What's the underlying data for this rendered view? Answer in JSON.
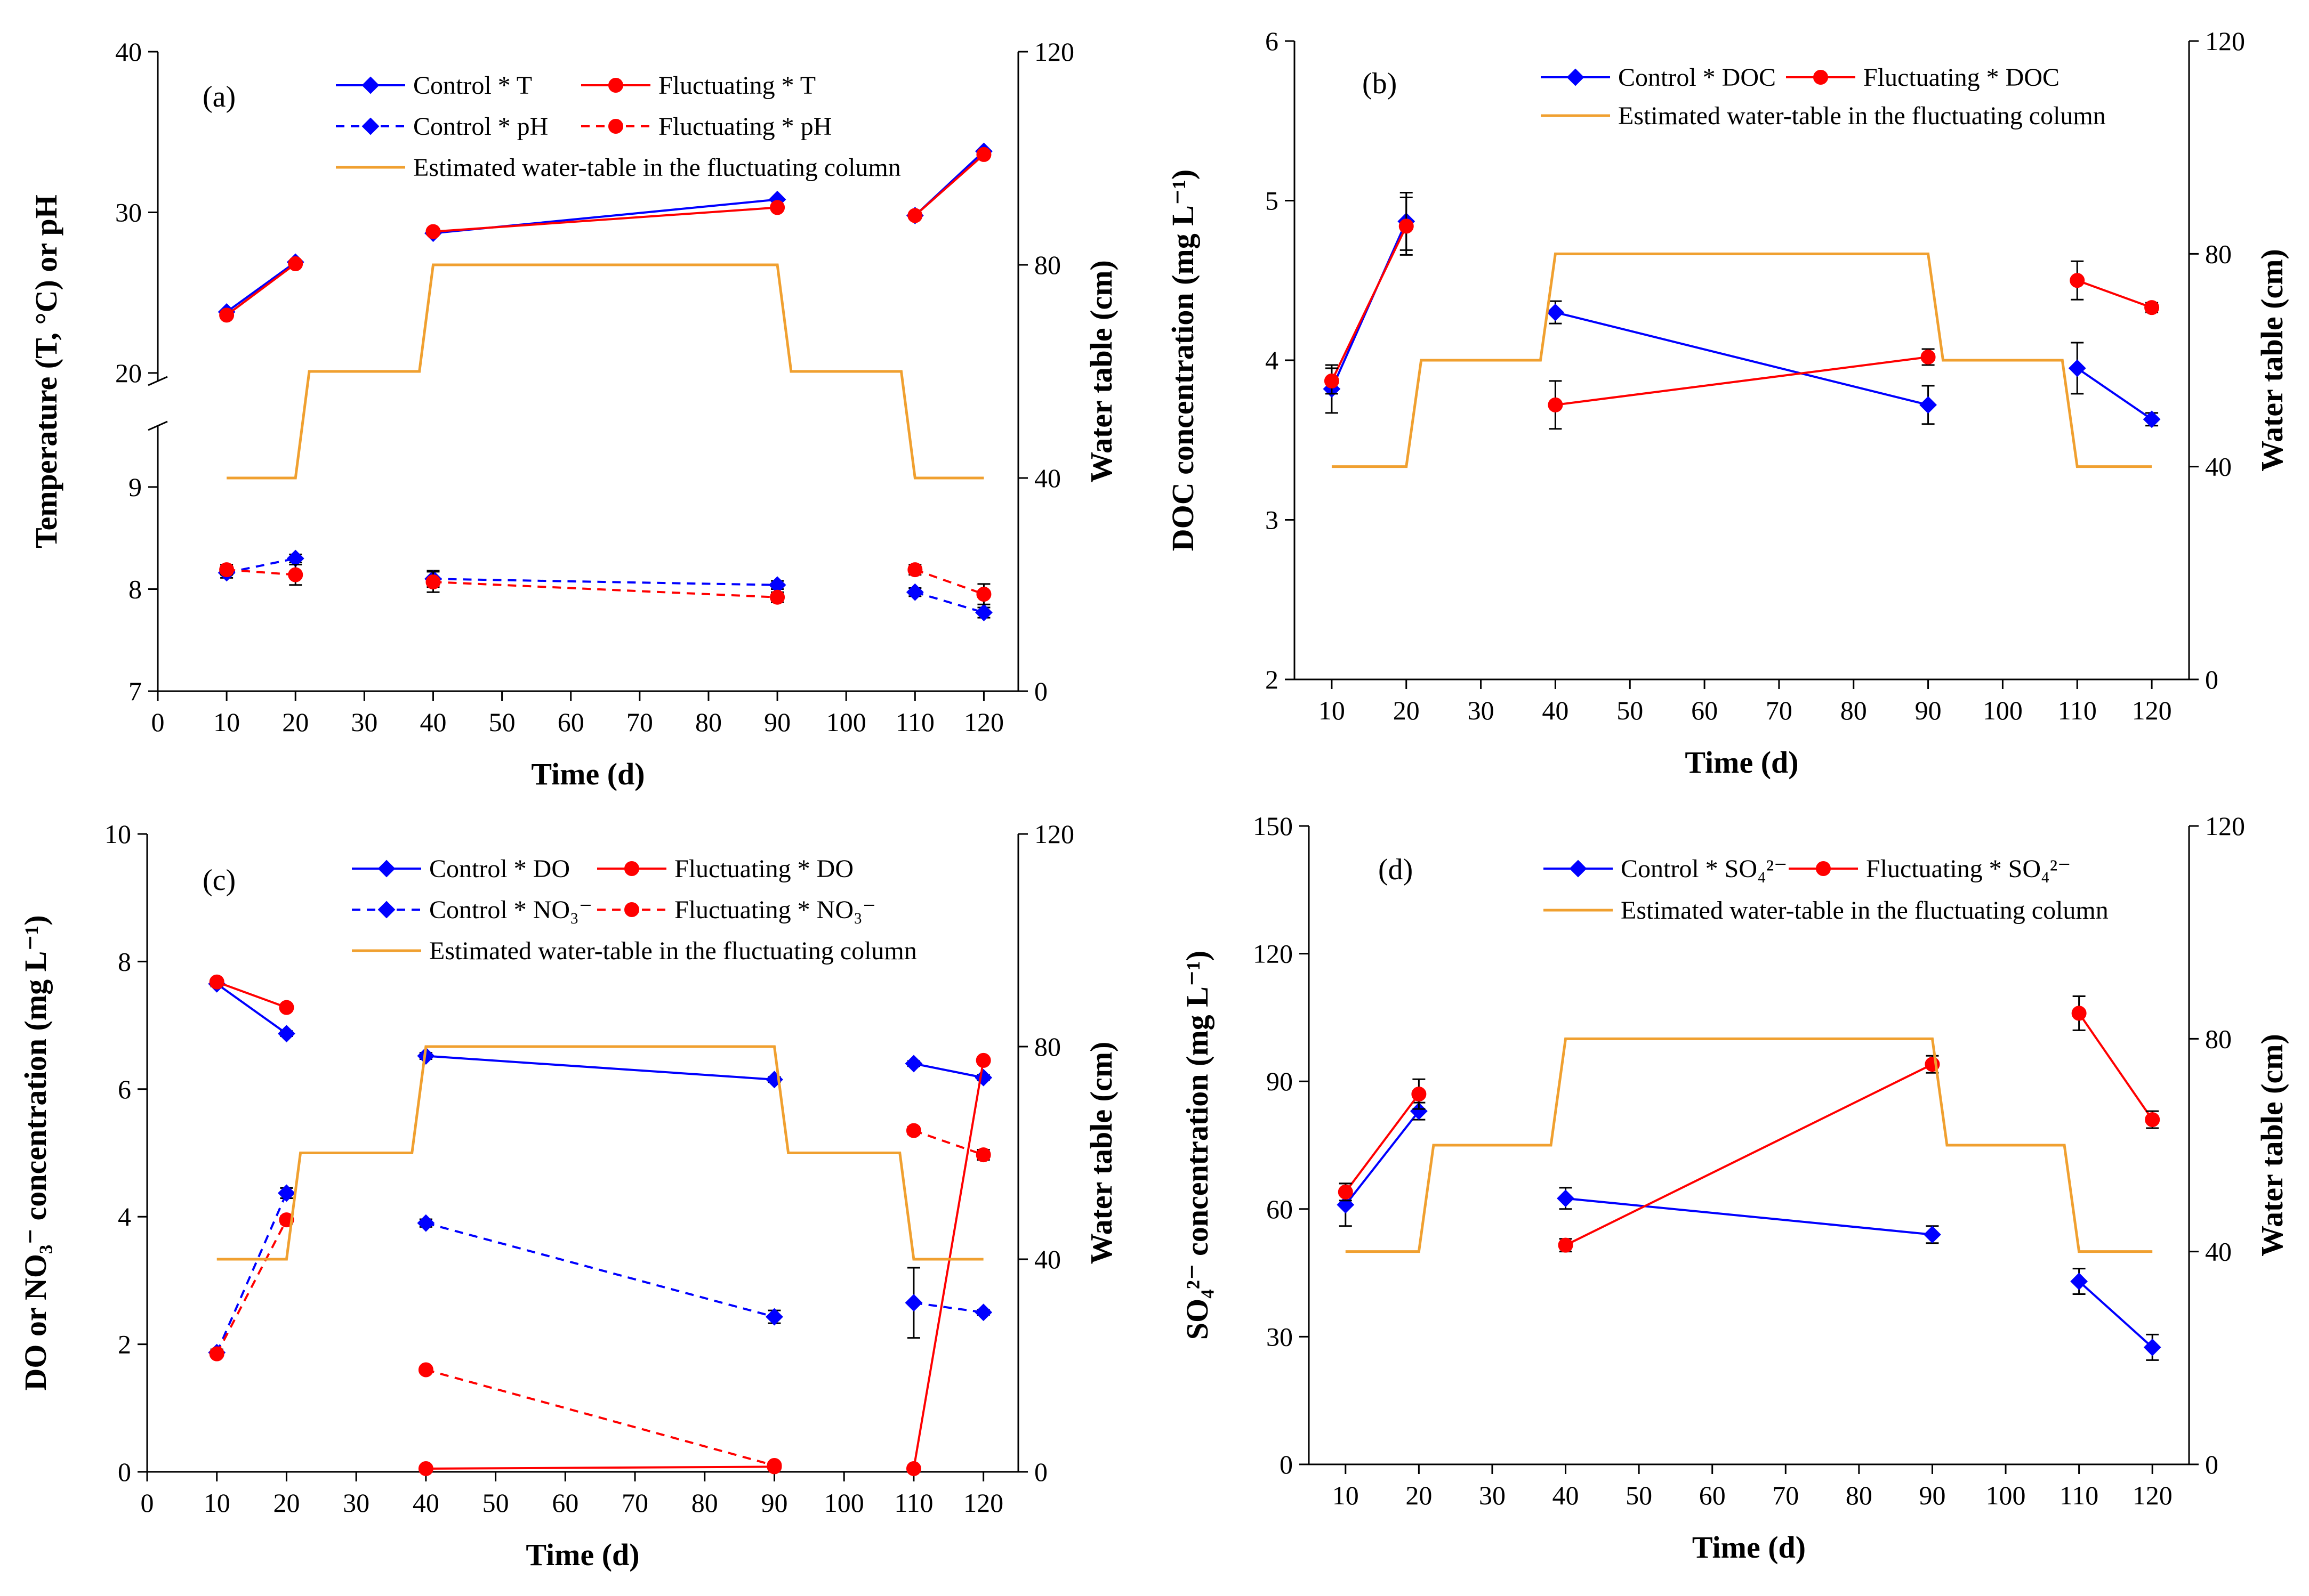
{
  "figure": {
    "panels": [
      {
        "id": "a",
        "label": "(a)",
        "xlabel": "Time (d)",
        "ylabel": "Temperature (T, °C) or pH",
        "y2label": "Water table (cm)",
        "legend": [
          {
            "label": "Control * T",
            "color": "#0000ff",
            "marker": "diamond",
            "dash": false
          },
          {
            "label": "Fluctuating * T",
            "color": "#ff0000",
            "marker": "circle",
            "dash": false
          },
          {
            "label": "Control * pH",
            "color": "#0000ff",
            "marker": "diamond",
            "dash": true
          },
          {
            "label": "Fluctuating * pH",
            "color": "#ff0000",
            "marker": "circle",
            "dash": true
          },
          {
            "label": "Estimated water-table in the fluctuating column",
            "color": "#f0a030",
            "marker": "none",
            "dash": false
          }
        ]
      },
      {
        "id": "b",
        "label": "(b)",
        "xlabel": "Time (d)",
        "ylabel": "DOC concentration (mg L⁻¹)",
        "y2label": "Water table (cm)",
        "legend": [
          {
            "label": "Control * DOC",
            "color": "#0000ff",
            "marker": "diamond",
            "dash": false
          },
          {
            "label": "Fluctuating * DOC",
            "color": "#ff0000",
            "marker": "circle",
            "dash": false
          },
          {
            "label": "Estimated water-table in the fluctuating column",
            "color": "#f0a030",
            "marker": "none",
            "dash": false
          }
        ]
      },
      {
        "id": "c",
        "label": "(c)",
        "xlabel": "Time (d)",
        "ylabel": "DO or NO₃⁻ concentration (mg L⁻¹)",
        "y2label": "Water table (cm)",
        "legend": [
          {
            "label": "Control * DO",
            "color": "#0000ff",
            "marker": "diamond",
            "dash": false
          },
          {
            "label": "Fluctuating * DO",
            "color": "#ff0000",
            "marker": "circle",
            "dash": false
          },
          {
            "label": "Control * NO₃⁻",
            "color": "#0000ff",
            "marker": "diamond",
            "dash": true
          },
          {
            "label": "Fluctuating * NO₃⁻",
            "color": "#ff0000",
            "marker": "circle",
            "dash": true
          },
          {
            "label": "Estimated water-table in the fluctuating column",
            "color": "#f0a030",
            "marker": "none",
            "dash": false
          }
        ]
      },
      {
        "id": "d",
        "label": "(d)",
        "xlabel": "Time (d)",
        "ylabel": "SO₄²⁻ concentration (mg L⁻¹)",
        "y2label": "Water table (cm)",
        "legend": [
          {
            "label": "Control * SO₄²⁻",
            "color": "#0000ff",
            "marker": "diamond",
            "dash": false
          },
          {
            "label": "Fluctuating * SO₄²⁻",
            "color": "#ff0000",
            "marker": "circle",
            "dash": false
          },
          {
            "label": "Estimated water-table in the fluctuating column",
            "color": "#f0a030",
            "marker": "none",
            "dash": false
          }
        ]
      }
    ]
  },
  "chart_data": [
    {
      "type": "line",
      "panel": "a",
      "title": "",
      "xlabel": "Time (d)",
      "ylabel": "Temperature (T, °C) or pH",
      "y2label": "Water table (cm)",
      "xlim": [
        0,
        125
      ],
      "xticks": [
        "0",
        "10",
        "20",
        "30",
        "40",
        "50",
        "60",
        "70",
        "80",
        "90",
        "100",
        "110",
        "120"
      ],
      "ylim": [
        7,
        40
      ],
      "y_axis_break": {
        "lower": [
          7,
          9.6
        ],
        "upper": [
          19.5,
          40
        ]
      },
      "yticks": [
        "7",
        "8",
        "9",
        "20",
        "30",
        "40"
      ],
      "y2lim": [
        0,
        120
      ],
      "y2ticks": [
        "0",
        "40",
        "80",
        "120"
      ],
      "series": [
        {
          "name": "Control * T",
          "axis": "left",
          "segments": [
            [
              [
                10,
                23.8
              ],
              [
                20,
                26.9
              ]
            ],
            [
              [
                40,
                28.7
              ],
              [
                90,
                30.8
              ]
            ],
            [
              [
                110,
                29.8
              ],
              [
                120,
                33.8
              ]
            ]
          ],
          "errors": [
            0,
            0,
            0,
            0,
            0,
            0
          ]
        },
        {
          "name": "Fluctuating * T",
          "axis": "left",
          "segments": [
            [
              [
                10,
                23.6
              ],
              [
                20,
                26.8
              ]
            ],
            [
              [
                40,
                28.8
              ],
              [
                90,
                30.3
              ]
            ],
            [
              [
                110,
                29.8
              ],
              [
                120,
                33.6
              ]
            ]
          ],
          "errors": [
            0,
            0,
            0,
            0,
            0,
            0
          ]
        },
        {
          "name": "Control * pH",
          "axis": "left",
          "segments": [
            [
              [
                10,
                8.16
              ],
              [
                20,
                8.3
              ]
            ],
            [
              [
                40,
                8.1
              ],
              [
                90,
                8.04
              ]
            ],
            [
              [
                110,
                7.97
              ],
              [
                120,
                7.77
              ]
            ]
          ],
          "errors": [
            0.05,
            0.04,
            0.08,
            0.04,
            0.04,
            0.05
          ]
        },
        {
          "name": "Fluctuating * pH",
          "axis": "left",
          "segments": [
            [
              [
                10,
                8.19
              ],
              [
                20,
                8.14
              ]
            ],
            [
              [
                40,
                8.07
              ],
              [
                90,
                7.92
              ]
            ],
            [
              [
                110,
                8.19
              ],
              [
                120,
                7.95
              ]
            ]
          ],
          "errors": [
            0.05,
            0.1,
            0.1,
            0.05,
            0.05,
            0.1
          ]
        },
        {
          "name": "Estimated water-table in the fluctuating column",
          "axis": "right",
          "x": [
            10,
            20,
            22,
            38,
            40,
            90,
            92,
            108,
            110,
            120
          ],
          "values": [
            40,
            40,
            60,
            60,
            80,
            80,
            60,
            60,
            40,
            40
          ]
        }
      ]
    },
    {
      "type": "line",
      "panel": "b",
      "title": "",
      "xlabel": "Time (d)",
      "ylabel": "DOC concentration (mg L⁻¹)",
      "y2label": "Water table (cm)",
      "xlim": [
        5,
        125
      ],
      "xticks": [
        "10",
        "20",
        "30",
        "40",
        "50",
        "60",
        "70",
        "80",
        "90",
        "100",
        "110",
        "120"
      ],
      "ylim": [
        2,
        6
      ],
      "yticks": [
        "2",
        "3",
        "4",
        "5",
        "6"
      ],
      "y2lim": [
        0,
        120
      ],
      "y2ticks": [
        "0",
        "40",
        "80",
        "120"
      ],
      "series": [
        {
          "name": "Control * DOC",
          "axis": "left",
          "segments": [
            [
              [
                10,
                3.82
              ],
              [
                20,
                4.87
              ]
            ],
            [
              [
                40,
                4.3
              ],
              [
                90,
                3.72
              ]
            ],
            [
              [
                110,
                3.95
              ],
              [
                120,
                3.63
              ]
            ]
          ],
          "errors": [
            0.15,
            0.18,
            0.07,
            0.12,
            0.16,
            0.04
          ]
        },
        {
          "name": "Fluctuating * DOC",
          "axis": "left",
          "segments": [
            [
              [
                10,
                3.87
              ],
              [
                20,
                4.84
              ]
            ],
            [
              [
                40,
                3.72
              ],
              [
                90,
                4.02
              ]
            ],
            [
              [
                110,
                4.5
              ],
              [
                120,
                4.33
              ]
            ]
          ],
          "errors": [
            0.08,
            0.18,
            0.15,
            0.05,
            0.12,
            0.03
          ]
        },
        {
          "name": "Estimated water-table in the fluctuating column",
          "axis": "right",
          "x": [
            10,
            20,
            22,
            38,
            40,
            90,
            92,
            108,
            110,
            120
          ],
          "values": [
            40,
            40,
            60,
            60,
            80,
            80,
            60,
            60,
            40,
            40
          ]
        }
      ]
    },
    {
      "type": "line",
      "panel": "c",
      "title": "",
      "xlabel": "Time (d)",
      "ylabel": "DO or NO₃⁻ concentration (mg L⁻¹)",
      "y2label": "Water table (cm)",
      "xlim": [
        0,
        125
      ],
      "xticks": [
        "0",
        "10",
        "20",
        "30",
        "40",
        "50",
        "60",
        "70",
        "80",
        "90",
        "100",
        "110",
        "120"
      ],
      "ylim": [
        0,
        10
      ],
      "yticks": [
        "0",
        "2",
        "4",
        "6",
        "8",
        "10"
      ],
      "y2lim": [
        0,
        120
      ],
      "y2ticks": [
        "0",
        "40",
        "80",
        "120"
      ],
      "series": [
        {
          "name": "Control * DO",
          "axis": "left",
          "segments": [
            [
              [
                10,
                7.65
              ],
              [
                20,
                6.87
              ]
            ],
            [
              [
                40,
                6.52
              ],
              [
                90,
                6.15
              ]
            ],
            [
              [
                110,
                6.4
              ],
              [
                120,
                6.18
              ]
            ]
          ],
          "errors": [
            0.04,
            0.04,
            0.05,
            0.04,
            0.04,
            0.04
          ]
        },
        {
          "name": "Fluctuating * DO",
          "axis": "left",
          "segments": [
            [
              [
                10,
                7.68
              ],
              [
                20,
                7.28
              ]
            ],
            [
              [
                40,
                0.05
              ],
              [
                90,
                0.08
              ]
            ],
            [
              [
                110,
                0.05
              ],
              [
                120,
                6.45
              ]
            ]
          ],
          "errors": [
            0.04,
            0.04,
            0.03,
            0.03,
            0.03,
            0.04
          ]
        },
        {
          "name": "Control * NO₃⁻",
          "axis": "left",
          "segments": [
            [
              [
                10,
                1.87
              ],
              [
                20,
                4.37
              ]
            ],
            [
              [
                40,
                3.9
              ],
              [
                90,
                2.43
              ]
            ],
            [
              [
                110,
                2.65
              ],
              [
                120,
                2.5
              ]
            ]
          ],
          "errors": [
            0.05,
            0.08,
            0.06,
            0.1,
            0.55,
            0.04
          ]
        },
        {
          "name": "Fluctuating * NO₃⁻",
          "axis": "left",
          "segments": [
            [
              [
                10,
                1.85
              ],
              [
                20,
                3.95
              ]
            ],
            [
              [
                40,
                1.6
              ],
              [
                90,
                0.1
              ]
            ],
            [
              [
                110,
                5.35
              ],
              [
                120,
                4.97
              ]
            ]
          ],
          "errors": [
            0.05,
            0.06,
            0.05,
            0.05,
            0.06,
            0.08
          ]
        },
        {
          "name": "Estimated water-table in the fluctuating column",
          "axis": "right",
          "x": [
            10,
            20,
            22,
            38,
            40,
            90,
            92,
            108,
            110,
            120
          ],
          "values": [
            40,
            40,
            60,
            60,
            80,
            80,
            60,
            60,
            40,
            40
          ]
        }
      ]
    },
    {
      "type": "line",
      "panel": "d",
      "title": "",
      "xlabel": "Time (d)",
      "ylabel": "SO₄²⁻ concentration (mg L⁻¹)",
      "y2label": "Water table (cm)",
      "xlim": [
        5,
        125
      ],
      "xticks": [
        "10",
        "20",
        "30",
        "40",
        "50",
        "60",
        "70",
        "80",
        "90",
        "100",
        "110",
        "120"
      ],
      "ylim": [
        0,
        150
      ],
      "yticks": [
        "0",
        "30",
        "60",
        "90",
        "120",
        "150"
      ],
      "y2lim": [
        0,
        120
      ],
      "y2ticks": [
        "0",
        "40",
        "80",
        "120"
      ],
      "series": [
        {
          "name": "Control * SO₄²⁻",
          "axis": "left",
          "segments": [
            [
              [
                10,
                61
              ],
              [
                20,
                83
              ]
            ],
            [
              [
                40,
                62.5
              ],
              [
                90,
                54
              ]
            ],
            [
              [
                110,
                43
              ],
              [
                120,
                27.5
              ]
            ]
          ],
          "errors": [
            5,
            2,
            2.5,
            2,
            3,
            3
          ]
        },
        {
          "name": "Fluctuating * SO₄²⁻",
          "axis": "left",
          "segments": [
            [
              [
                10,
                64
              ],
              [
                20,
                87
              ]
            ],
            [
              [
                40,
                51.5
              ],
              [
                90,
                94
              ]
            ],
            [
              [
                110,
                106
              ],
              [
                120,
                81
              ]
            ]
          ],
          "errors": [
            2,
            3.5,
            1.5,
            2,
            4,
            2
          ]
        },
        {
          "name": "Estimated water-table in the fluctuating column",
          "axis": "right",
          "x": [
            10,
            20,
            22,
            38,
            40,
            90,
            92,
            108,
            110,
            120
          ],
          "values": [
            40,
            40,
            60,
            60,
            80,
            80,
            60,
            60,
            40,
            40
          ]
        }
      ]
    }
  ]
}
